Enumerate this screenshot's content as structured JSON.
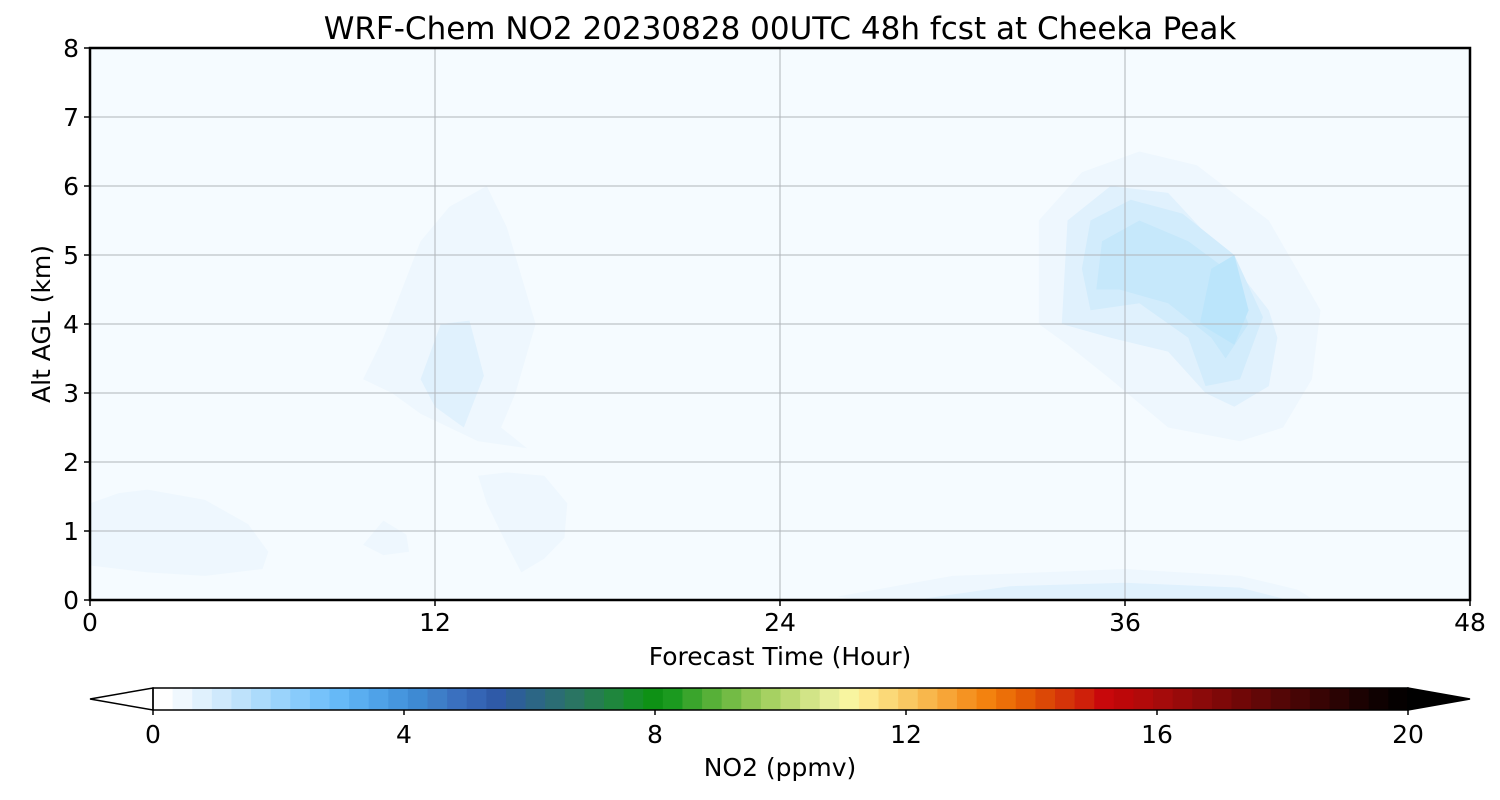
{
  "chart_data": {
    "type": "heatmap",
    "title": "WRF-Chem NO2  20230828 00UTC 48h fcst at Cheeka Peak",
    "xlabel": "Forecast Time (Hour)",
    "ylabel": "Alt AGL (km)",
    "xlim": [
      0,
      48
    ],
    "ylim": [
      0,
      8
    ],
    "xticks": [
      "0",
      "12",
      "24",
      "36",
      "48"
    ],
    "yticks": [
      "0",
      "1",
      "2",
      "3",
      "4",
      "5",
      "6",
      "7",
      "8"
    ],
    "grid": true,
    "background_level_color": "#f5fbff",
    "regions": [
      {
        "name": "low-level-0h",
        "level": 0.15,
        "points": [
          [
            0,
            0.5
          ],
          [
            2,
            0.4
          ],
          [
            4,
            0.35
          ],
          [
            6,
            0.45
          ],
          [
            6.2,
            0.7
          ],
          [
            5.5,
            1.1
          ],
          [
            4,
            1.45
          ],
          [
            2,
            1.6
          ],
          [
            1,
            1.55
          ],
          [
            0,
            1.4
          ]
        ]
      },
      {
        "name": "mid-level-12h-outer",
        "level": 0.15,
        "points": [
          [
            9.5,
            3.2
          ],
          [
            10.2,
            3.8
          ],
          [
            11.5,
            5.2
          ],
          [
            12.5,
            5.7
          ],
          [
            13.8,
            6.0
          ],
          [
            14.5,
            5.4
          ],
          [
            15.5,
            4.0
          ],
          [
            14.8,
            3.0
          ],
          [
            14.3,
            2.5
          ],
          [
            15.2,
            2.2
          ],
          [
            13.5,
            2.3
          ],
          [
            11.5,
            2.7
          ],
          [
            10.5,
            3.0
          ]
        ]
      },
      {
        "name": "mid-level-12h-inner",
        "level": 0.35,
        "points": [
          [
            11.5,
            3.2
          ],
          [
            12.2,
            4.0
          ],
          [
            13.2,
            4.05
          ],
          [
            13.7,
            3.25
          ],
          [
            13.0,
            2.5
          ],
          [
            12.0,
            2.8
          ]
        ]
      },
      {
        "name": "low-level-14h",
        "level": 0.15,
        "points": [
          [
            13.5,
            1.8
          ],
          [
            14.5,
            1.85
          ],
          [
            15.8,
            1.8
          ],
          [
            16.6,
            1.4
          ],
          [
            16.5,
            0.9
          ],
          [
            15.8,
            0.6
          ],
          [
            15.0,
            0.4
          ],
          [
            14.5,
            0.8
          ],
          [
            13.8,
            1.4
          ]
        ]
      },
      {
        "name": "low-level-10h-small",
        "level": 0.15,
        "points": [
          [
            9.5,
            0.8
          ],
          [
            10.2,
            1.15
          ],
          [
            11.0,
            0.95
          ],
          [
            11.1,
            0.7
          ],
          [
            10.2,
            0.65
          ]
        ]
      },
      {
        "name": "surface-layer-outer",
        "level": 0.15,
        "points": [
          [
            26,
            0.05
          ],
          [
            30,
            0.35
          ],
          [
            36,
            0.45
          ],
          [
            40,
            0.35
          ],
          [
            42,
            0.15
          ],
          [
            42.5,
            0.02
          ],
          [
            26.5,
            0.02
          ]
        ]
      },
      {
        "name": "surface-layer-inner",
        "level": 0.35,
        "points": [
          [
            29,
            0.02
          ],
          [
            32,
            0.2
          ],
          [
            36,
            0.25
          ],
          [
            40,
            0.18
          ],
          [
            41.5,
            0.02
          ]
        ]
      },
      {
        "name": "plume-36h-l1",
        "level": 0.15,
        "points": [
          [
            33,
            4.0
          ],
          [
            33,
            5.5
          ],
          [
            34.5,
            6.2
          ],
          [
            36.5,
            6.5
          ],
          [
            38.5,
            6.3
          ],
          [
            41,
            5.5
          ],
          [
            42.8,
            4.2
          ],
          [
            42.5,
            3.2
          ],
          [
            41.5,
            2.5
          ],
          [
            40,
            2.3
          ],
          [
            37.5,
            2.5
          ],
          [
            35.5,
            3.2
          ],
          [
            34,
            3.7
          ]
        ]
      },
      {
        "name": "plume-36h-l2",
        "level": 0.35,
        "points": [
          [
            33.8,
            4.0
          ],
          [
            34,
            5.5
          ],
          [
            35.5,
            6.0
          ],
          [
            37.5,
            5.9
          ],
          [
            39.5,
            5.0
          ],
          [
            41,
            4.2
          ],
          [
            41.3,
            3.8
          ],
          [
            41.0,
            3.1
          ],
          [
            39.8,
            2.8
          ],
          [
            38.8,
            3.0
          ],
          [
            37.5,
            3.6
          ],
          [
            35.5,
            3.8
          ]
        ]
      },
      {
        "name": "plume-36h-l3",
        "level": 0.55,
        "points": [
          [
            34.5,
            4.8
          ],
          [
            34.8,
            5.5
          ],
          [
            36.2,
            5.8
          ],
          [
            38.0,
            5.6
          ],
          [
            39.8,
            5.0
          ],
          [
            40.8,
            4.1
          ],
          [
            40.0,
            3.2
          ],
          [
            38.8,
            3.1
          ],
          [
            38.2,
            3.8
          ],
          [
            36.5,
            4.3
          ],
          [
            34.8,
            4.2
          ]
        ]
      },
      {
        "name": "plume-36h-l4",
        "level": 0.75,
        "points": [
          [
            35.0,
            4.5
          ],
          [
            35.2,
            5.2
          ],
          [
            36.5,
            5.5
          ],
          [
            38.2,
            5.2
          ],
          [
            39.5,
            4.8
          ],
          [
            40.3,
            4.0
          ],
          [
            39.5,
            3.5
          ],
          [
            39.0,
            3.8
          ],
          [
            37.5,
            4.3
          ],
          [
            35.8,
            4.5
          ]
        ]
      },
      {
        "name": "plume-36h-l5",
        "level": 0.95,
        "points": [
          [
            38.6,
            4.0
          ],
          [
            39.0,
            4.8
          ],
          [
            39.8,
            5.0
          ],
          [
            40.3,
            4.2
          ],
          [
            39.8,
            3.7
          ]
        ]
      }
    ]
  },
  "colorbar": {
    "label": "NO2  (ppmv)",
    "ticks": [
      "0",
      "4",
      "8",
      "12",
      "16",
      "20"
    ],
    "range": [
      0,
      20
    ],
    "extend": "both",
    "under_color": "#ffffff",
    "over_color": "#000000",
    "colors": [
      "#ffffff",
      "#f0f8fe",
      "#e0f1fd",
      "#cfe9fc",
      "#bee2fb",
      "#acdbfb",
      "#9ad3fb",
      "#88cbfb",
      "#76c2fa",
      "#66b9f7",
      "#5aaef0",
      "#4fa2e8",
      "#4696de",
      "#3e8ad3",
      "#3e7ec8",
      "#3a70bf",
      "#3565b5",
      "#2f5aa8",
      "#2d5f97",
      "#2c6685",
      "#2b6d74",
      "#2a7563",
      "#257d50",
      "#1f863d",
      "#168e29",
      "#0e9115",
      "#1b9a1f",
      "#3aa52c",
      "#57b038",
      "#73bb45",
      "#8ec653",
      "#a6d162",
      "#bcda73",
      "#d2e487",
      "#e6ee9a",
      "#f8f5a0",
      "#fde98f",
      "#fbd978",
      "#f9c862",
      "#f8b74c",
      "#f7a537",
      "#f59322",
      "#f3820f",
      "#ec6f08",
      "#e45b05",
      "#dc4806",
      "#d53409",
      "#cf200a",
      "#c8080b",
      "#bd0709",
      "#b20a0a",
      "#a50b0b",
      "#980a0a",
      "#8b0a0a",
      "#7e0808",
      "#700707",
      "#620707",
      "#540606",
      "#460505",
      "#380404",
      "#2a0303",
      "#1c0202",
      "#0f0101",
      "#050000"
    ]
  }
}
